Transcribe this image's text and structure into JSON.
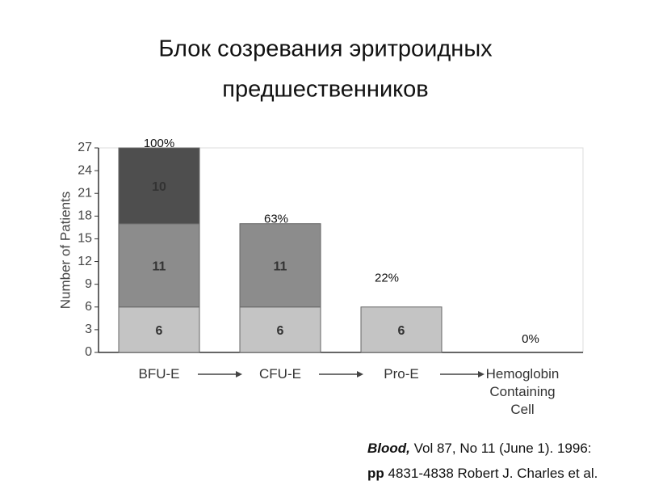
{
  "chart_data": {
    "type": "stacked_bar",
    "title": [
      "Блок созревания эритроидных",
      "предшественников"
    ],
    "y_label": "Number of Patients",
    "categories": [
      "BFU-E",
      "CFU-E",
      "Pro-E",
      "Hemoglobin Containing Cell"
    ],
    "series": [
      {
        "color": "#c4c4c4",
        "values": [
          6,
          6,
          6,
          0
        ]
      },
      {
        "color": "#8c8c8c",
        "values": [
          11,
          11,
          null,
          null
        ]
      },
      {
        "color": "#4e4e4e",
        "values": [
          10,
          null,
          null,
          null
        ]
      }
    ],
    "annotations": [
      "100%",
      "63%",
      "22%",
      "0%"
    ],
    "ylim": [
      0,
      27
    ],
    "yticks": [
      0,
      3,
      6,
      9,
      12,
      15,
      18,
      21,
      24,
      27
    ],
    "source": [
      [
        "Blood,",
        " Vol 87, No 11 (June 1). 1996:"
      ],
      [
        "pp",
        " 4831-4838 Robert J. Charles et al."
      ]
    ]
  }
}
